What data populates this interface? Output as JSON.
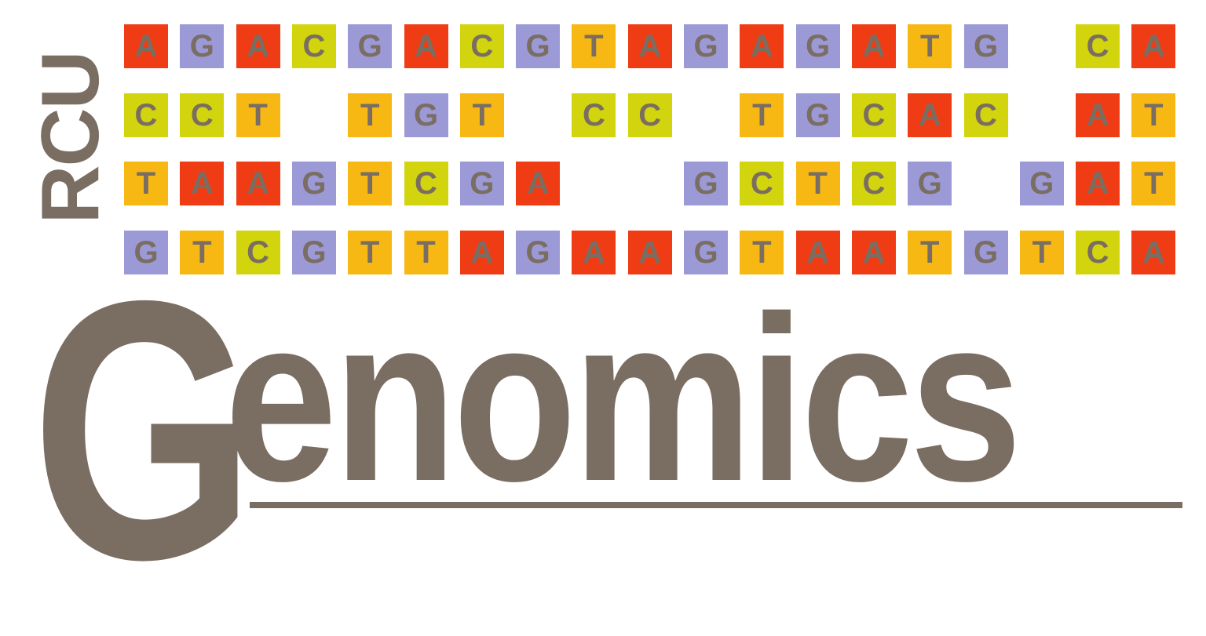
{
  "colors": {
    "brand_gray": "#7a6d62",
    "red": "#f03c14",
    "purple": "#9b99d6",
    "lime": "#d2d40e",
    "orange": "#f8b814",
    "letter": "#7a6d62",
    "background": "#ffffff"
  },
  "logo": {
    "vertical_label": "RCU",
    "word_initial": "G",
    "word_rest": "enomics"
  },
  "sequence_grid": {
    "rows": [
      [
        {
          "letter": "A",
          "color": "red"
        },
        {
          "letter": "G",
          "color": "purple"
        },
        {
          "letter": "A",
          "color": "red"
        },
        {
          "letter": "C",
          "color": "lime"
        },
        {
          "letter": "G",
          "color": "purple"
        },
        {
          "letter": "A",
          "color": "red"
        },
        {
          "letter": "C",
          "color": "lime"
        },
        {
          "letter": "G",
          "color": "purple"
        },
        {
          "letter": "T",
          "color": "orange"
        },
        {
          "letter": "A",
          "color": "red"
        },
        {
          "letter": "G",
          "color": "purple"
        },
        {
          "letter": "A",
          "color": "red"
        },
        {
          "letter": "G",
          "color": "purple"
        },
        {
          "letter": "A",
          "color": "red"
        },
        {
          "letter": "T",
          "color": "orange"
        },
        {
          "letter": "G",
          "color": "purple"
        },
        null,
        {
          "letter": "C",
          "color": "lime"
        },
        {
          "letter": "A",
          "color": "red"
        }
      ],
      [
        {
          "letter": "C",
          "color": "lime"
        },
        {
          "letter": "C",
          "color": "lime"
        },
        {
          "letter": "T",
          "color": "orange"
        },
        null,
        {
          "letter": "T",
          "color": "orange"
        },
        {
          "letter": "G",
          "color": "purple"
        },
        {
          "letter": "T",
          "color": "orange"
        },
        null,
        {
          "letter": "C",
          "color": "lime"
        },
        {
          "letter": "C",
          "color": "lime"
        },
        null,
        {
          "letter": "T",
          "color": "orange"
        },
        {
          "letter": "G",
          "color": "purple"
        },
        {
          "letter": "C",
          "color": "lime"
        },
        {
          "letter": "A",
          "color": "red"
        },
        {
          "letter": "C",
          "color": "lime"
        },
        null,
        {
          "letter": "A",
          "color": "red"
        },
        {
          "letter": "T",
          "color": "orange"
        }
      ],
      [
        {
          "letter": "T",
          "color": "orange"
        },
        {
          "letter": "A",
          "color": "red"
        },
        {
          "letter": "A",
          "color": "red"
        },
        {
          "letter": "G",
          "color": "purple"
        },
        {
          "letter": "T",
          "color": "orange"
        },
        {
          "letter": "C",
          "color": "lime"
        },
        {
          "letter": "G",
          "color": "purple"
        },
        {
          "letter": "A",
          "color": "red"
        },
        null,
        null,
        {
          "letter": "G",
          "color": "purple"
        },
        {
          "letter": "C",
          "color": "lime"
        },
        {
          "letter": "T",
          "color": "orange"
        },
        {
          "letter": "C",
          "color": "lime"
        },
        {
          "letter": "G",
          "color": "purple"
        },
        null,
        {
          "letter": "G",
          "color": "purple"
        },
        {
          "letter": "A",
          "color": "red"
        },
        {
          "letter": "T",
          "color": "orange"
        }
      ],
      [
        {
          "letter": "G",
          "color": "purple"
        },
        {
          "letter": "T",
          "color": "orange"
        },
        {
          "letter": "C",
          "color": "lime"
        },
        {
          "letter": "G",
          "color": "purple"
        },
        {
          "letter": "T",
          "color": "orange"
        },
        {
          "letter": "T",
          "color": "orange"
        },
        {
          "letter": "A",
          "color": "red"
        },
        {
          "letter": "G",
          "color": "purple"
        },
        {
          "letter": "A",
          "color": "red"
        },
        {
          "letter": "A",
          "color": "red"
        },
        {
          "letter": "G",
          "color": "purple"
        },
        {
          "letter": "T",
          "color": "orange"
        },
        {
          "letter": "A",
          "color": "red"
        },
        {
          "letter": "A",
          "color": "red"
        },
        {
          "letter": "T",
          "color": "orange"
        },
        {
          "letter": "G",
          "color": "purple"
        },
        {
          "letter": "T",
          "color": "orange"
        },
        {
          "letter": "C",
          "color": "lime"
        },
        {
          "letter": "A",
          "color": "red"
        }
      ]
    ]
  }
}
